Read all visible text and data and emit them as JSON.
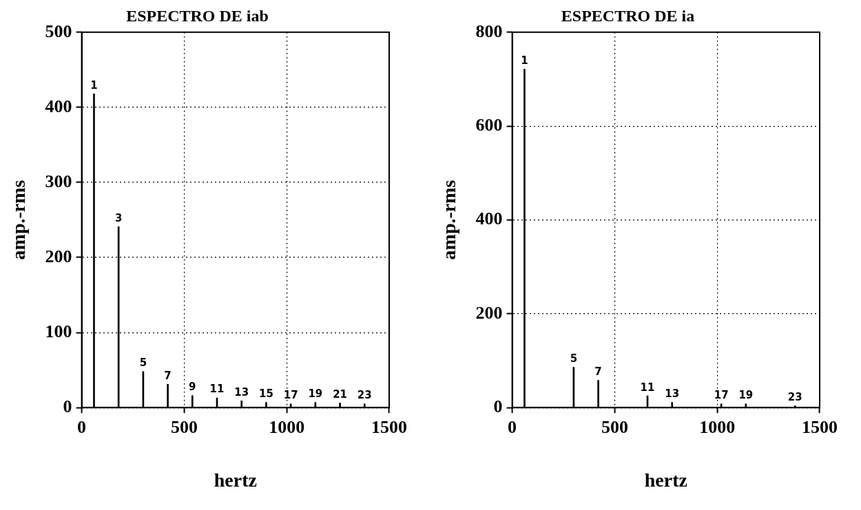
{
  "chart_data": [
    {
      "type": "bar",
      "title": "ESPECTRO DE iab",
      "xlabel": "hertz",
      "ylabel": "amp.-rms",
      "x": [
        60,
        180,
        300,
        420,
        540,
        660,
        780,
        900,
        1020,
        1140,
        1260,
        1380
      ],
      "series": [
        {
          "color": "#000000",
          "values": [
            418,
            241,
            48,
            31,
            16,
            13,
            9,
            7,
            5,
            7,
            6,
            5
          ]
        }
      ],
      "xlim": [
        0,
        1500
      ],
      "xticks": [
        0,
        500,
        1000,
        1500
      ],
      "ylim": [
        0,
        500
      ],
      "yticks": [
        0,
        100,
        200,
        300,
        400,
        500
      ],
      "grid": true,
      "legend": false,
      "annotations": [
        {
          "text": "1",
          "x": 60,
          "y": 418
        },
        {
          "text": "3",
          "x": 180,
          "y": 241
        },
        {
          "text": "5",
          "x": 300,
          "y": 48
        },
        {
          "text": "7",
          "x": 420,
          "y": 31
        },
        {
          "text": "9",
          "x": 540,
          "y": 16
        },
        {
          "text": "11",
          "x": 660,
          "y": 13
        },
        {
          "text": "13",
          "x": 780,
          "y": 9
        },
        {
          "text": "15",
          "x": 900,
          "y": 7
        },
        {
          "text": "17",
          "x": 1020,
          "y": 5
        },
        {
          "text": "19",
          "x": 1140,
          "y": 7
        },
        {
          "text": "21",
          "x": 1260,
          "y": 6
        },
        {
          "text": "23",
          "x": 1380,
          "y": 5
        }
      ]
    },
    {
      "type": "bar",
      "title": "ESPECTRO DE ia",
      "xlabel": "hertz",
      "ylabel": "amp.-rms",
      "x": [
        60,
        300,
        420,
        660,
        780,
        1020,
        1140,
        1380
      ],
      "series": [
        {
          "color": "#000000",
          "values": [
            721,
            86,
            58,
            25,
            11,
            8,
            8,
            4
          ]
        }
      ],
      "xlim": [
        0,
        1500
      ],
      "xticks": [
        0,
        500,
        1000,
        1500
      ],
      "ylim": [
        0,
        800
      ],
      "yticks": [
        0,
        200,
        400,
        600,
        800
      ],
      "grid": true,
      "legend": false,
      "annotations": [
        {
          "text": "1",
          "x": 60,
          "y": 721
        },
        {
          "text": "5",
          "x": 300,
          "y": 86
        },
        {
          "text": "7",
          "x": 420,
          "y": 58
        },
        {
          "text": "11",
          "x": 660,
          "y": 25
        },
        {
          "text": "13",
          "x": 780,
          "y": 11
        },
        {
          "text": "17",
          "x": 1020,
          "y": 8
        },
        {
          "text": "19",
          "x": 1140,
          "y": 8
        },
        {
          "text": "23",
          "x": 1380,
          "y": 4
        }
      ]
    }
  ]
}
